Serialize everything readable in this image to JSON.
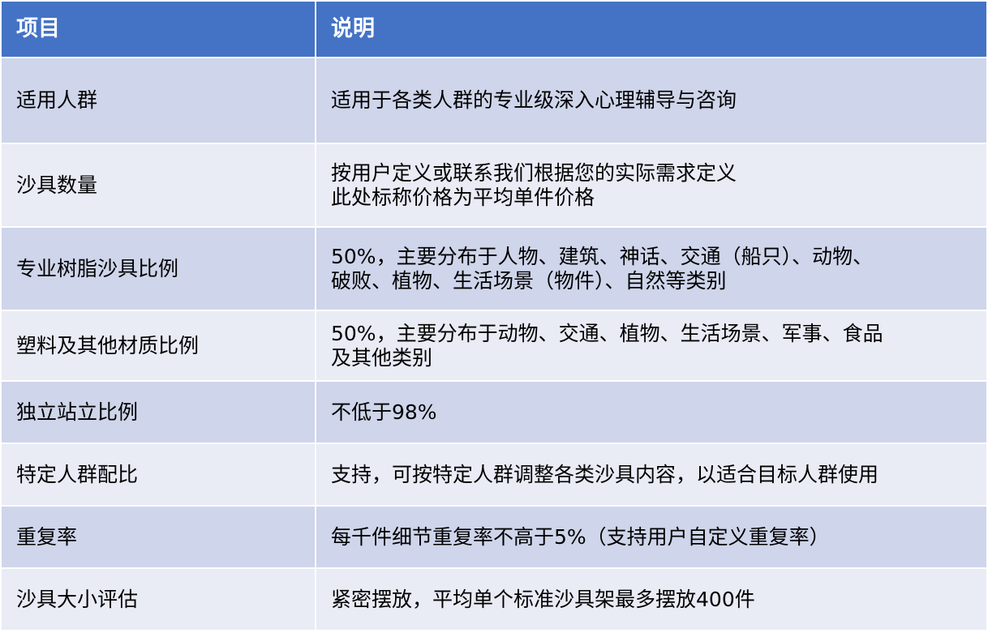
{
  "colors": {
    "header_bg": "#4472C4",
    "row_dark": "#CFD5EA",
    "row_light": "#E9EBF5"
  },
  "header": {
    "col1": "项目",
    "col2": "说明"
  },
  "rows": [
    {
      "item": "适用人群",
      "desc": "适用于各类人群的专业级深入心理辅导与咨询"
    },
    {
      "item": "沙具数量",
      "desc": "按用户定义或联系我们根据您的实际需求定义\n此处标称价格为平均单件价格"
    },
    {
      "item": "专业树脂沙具比例",
      "desc": "50%，主要分布于人物、建筑、神话、交通（船只）、动物、\n破败、植物、生活场景（物件）、自然等类别"
    },
    {
      "item": "塑料及其他材质比例",
      "desc": "50%，主要分布于动物、交通、植物、生活场景、军事、食品\n及其他类别"
    },
    {
      "item": "独立站立比例",
      "desc": "不低于98%"
    },
    {
      "item": "特定人群配比",
      "desc": "支持，可按特定人群调整各类沙具内容，以适合目标人群使用"
    },
    {
      "item": "重复率",
      "desc": "每千件细节重复率不高于5%（支持用户自定义重复率）"
    },
    {
      "item": "沙具大小评估",
      "desc": "紧密摆放，平均单个标准沙具架最多摆放400件"
    }
  ]
}
